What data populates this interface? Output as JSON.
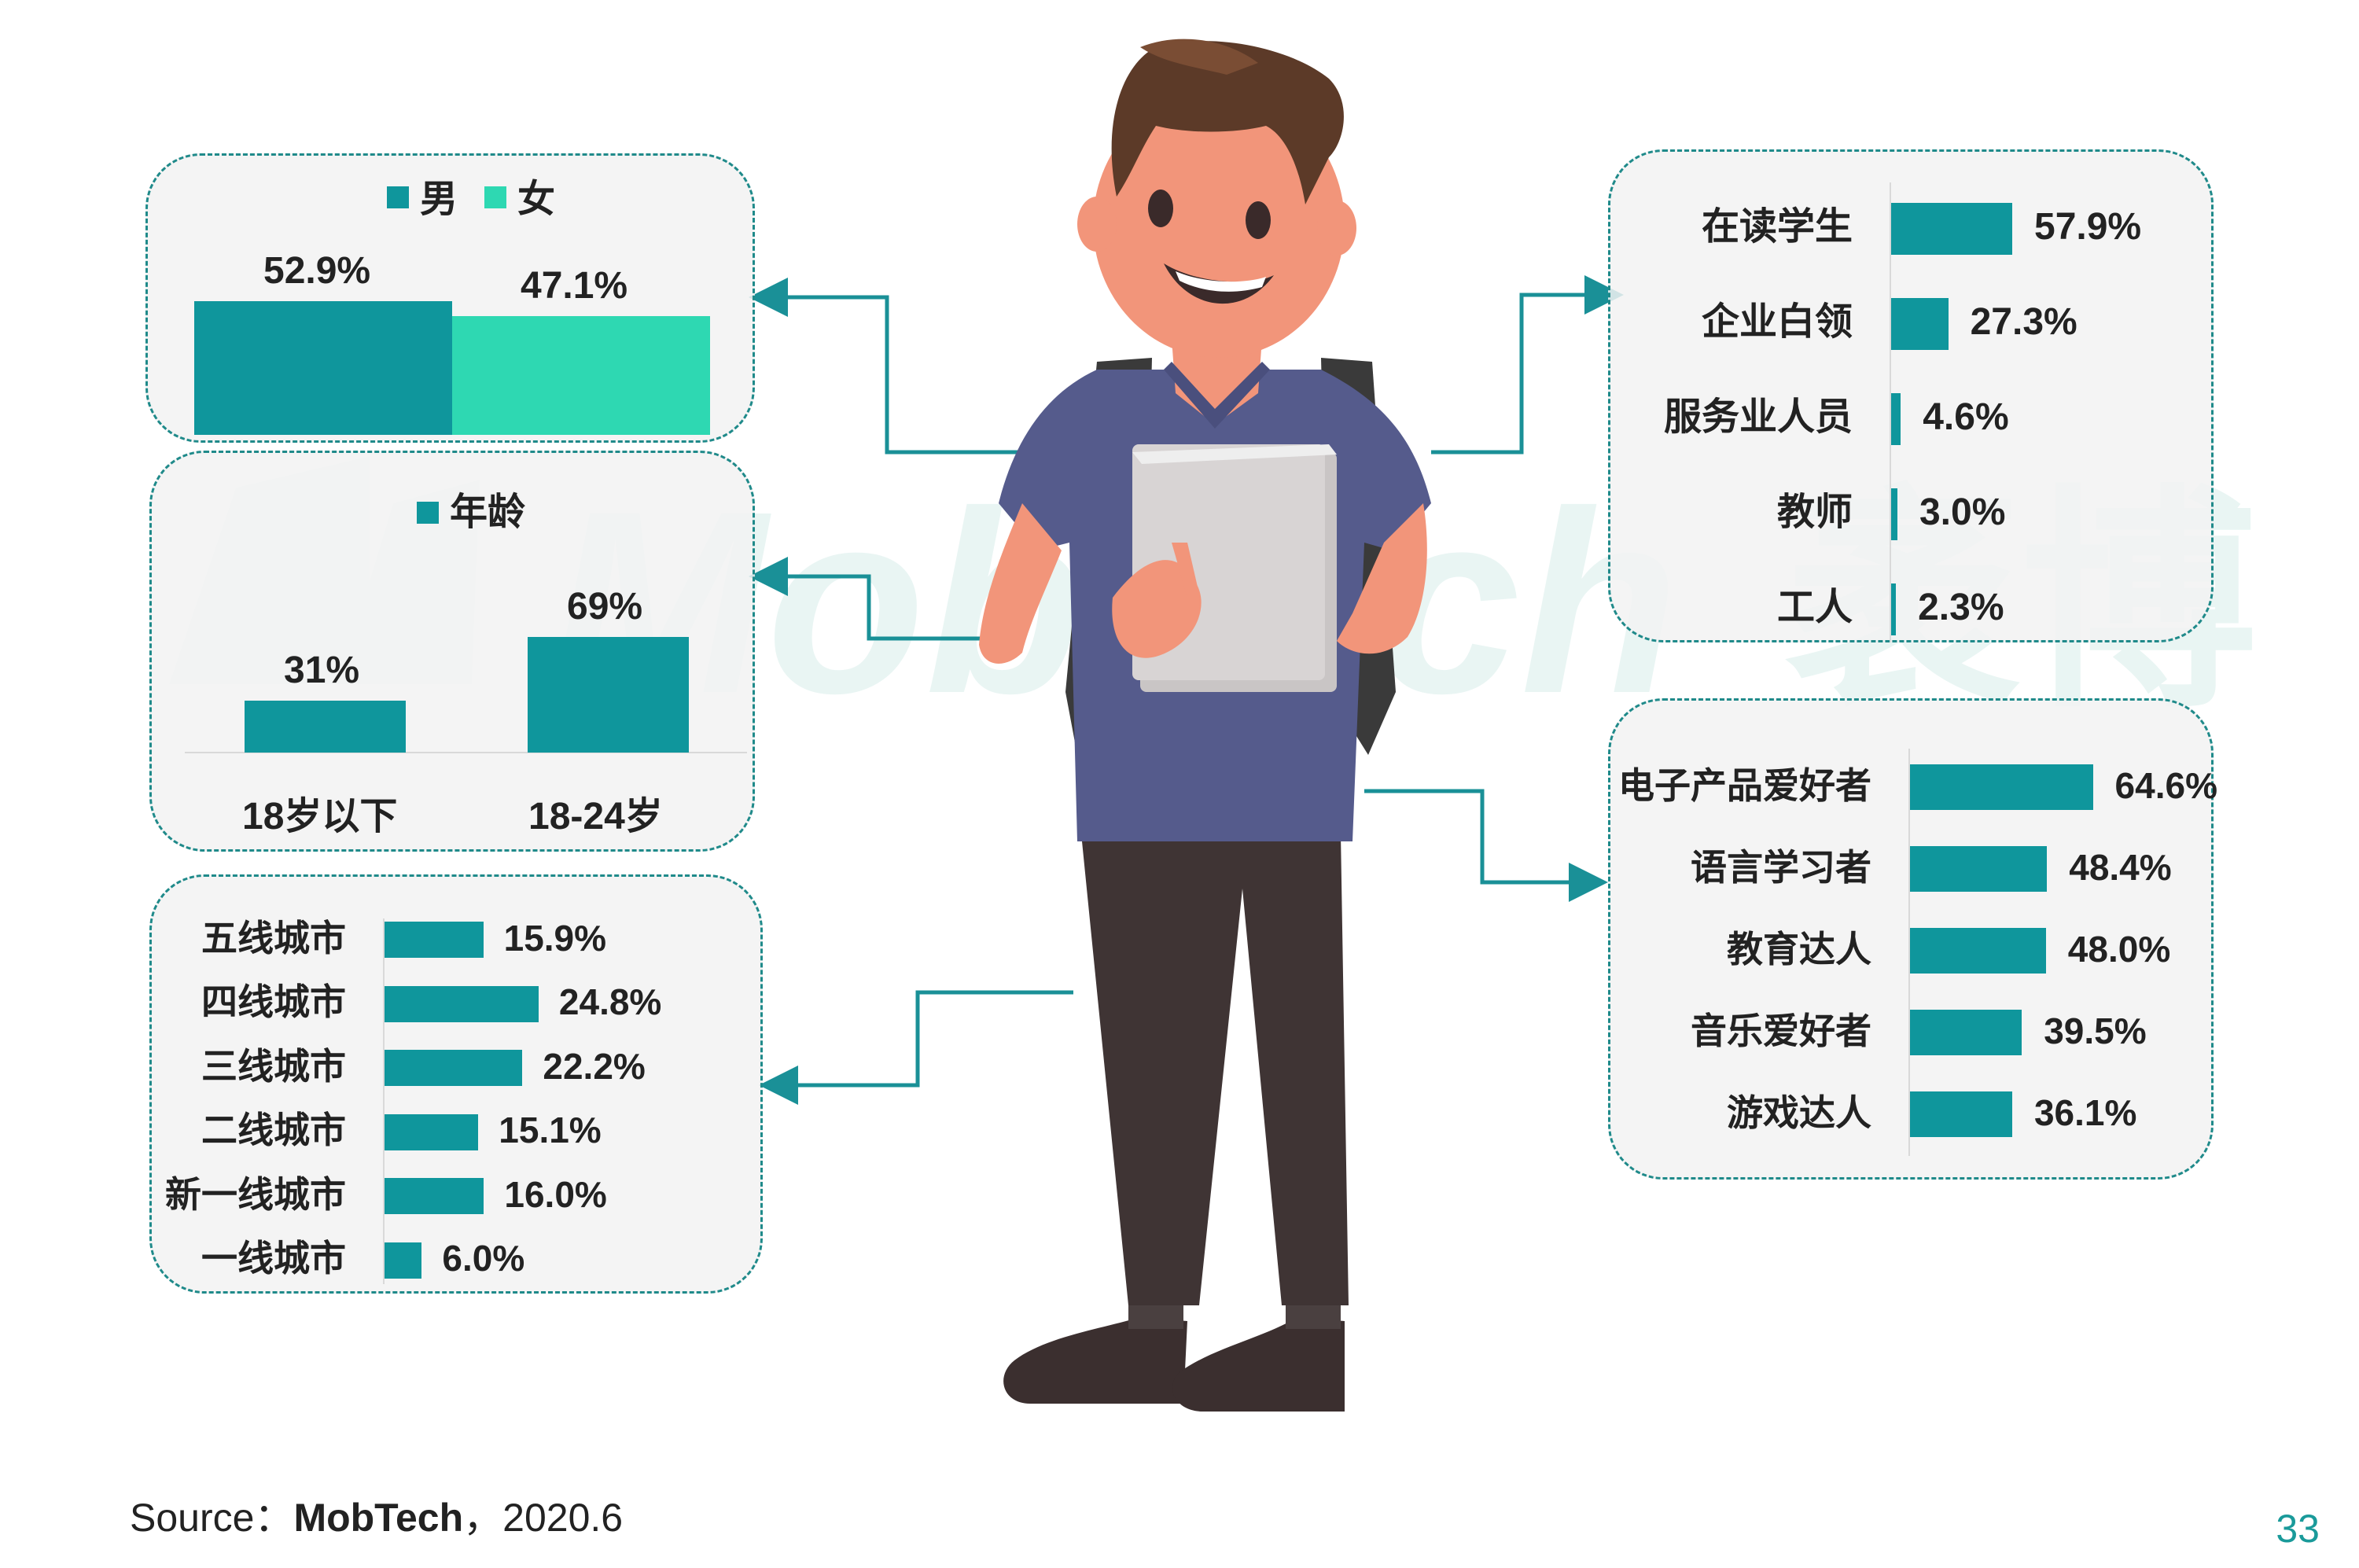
{
  "colors": {
    "teal": "#0f969c",
    "mint": "#2ed8b2",
    "connector": "#1a9097",
    "panel_border": "#1f8a8a"
  },
  "watermark": "Mob Tech 袤博",
  "chart_data": [
    {
      "type": "bar",
      "id": "gender",
      "legend": [
        "男",
        "女"
      ],
      "categories": [
        "男",
        "女"
      ],
      "values": [
        52.9,
        47.1
      ],
      "labels": [
        "52.9%",
        "47.1%"
      ],
      "colors": [
        "#0f969c",
        "#2ed8b2"
      ]
    },
    {
      "type": "bar",
      "id": "age",
      "legend": [
        "年龄"
      ],
      "categories": [
        "18岁以下",
        "18-24岁"
      ],
      "values": [
        31,
        69
      ],
      "labels": [
        "31%",
        "69%"
      ],
      "ylim": [
        0,
        69
      ]
    },
    {
      "type": "bar",
      "id": "city",
      "orientation": "horizontal",
      "categories": [
        "五线城市",
        "四线城市",
        "三线城市",
        "二线城市",
        "新一线城市",
        "一线城市"
      ],
      "values": [
        15.9,
        24.8,
        22.2,
        15.1,
        16.0,
        6.0
      ],
      "labels": [
        "15.9%",
        "24.8%",
        "22.2%",
        "15.1%",
        "16.0%",
        "6.0%"
      ]
    },
    {
      "type": "bar",
      "id": "occupation",
      "orientation": "horizontal",
      "categories": [
        "在读学生",
        "企业白领",
        "服务业人员",
        "教师",
        "工人"
      ],
      "values": [
        57.9,
        27.3,
        4.6,
        3.0,
        2.3
      ],
      "labels": [
        "57.9%",
        "27.3%",
        "4.6%",
        "3.0%",
        "2.3%"
      ]
    },
    {
      "type": "bar",
      "id": "interest",
      "orientation": "horizontal",
      "categories": [
        "电子产品爱好者",
        "语言学习者",
        "教育达人",
        "音乐爱好者",
        "游戏达人"
      ],
      "values": [
        64.6,
        48.4,
        48.0,
        39.5,
        36.1
      ],
      "labels": [
        "64.6%",
        "48.4%",
        "48.0%",
        "39.5%",
        "36.1%"
      ]
    }
  ],
  "footer": {
    "source_prefix": "Source：",
    "source_name": "MobTech",
    "source_suffix": "，2020.6",
    "page_number": "33"
  }
}
